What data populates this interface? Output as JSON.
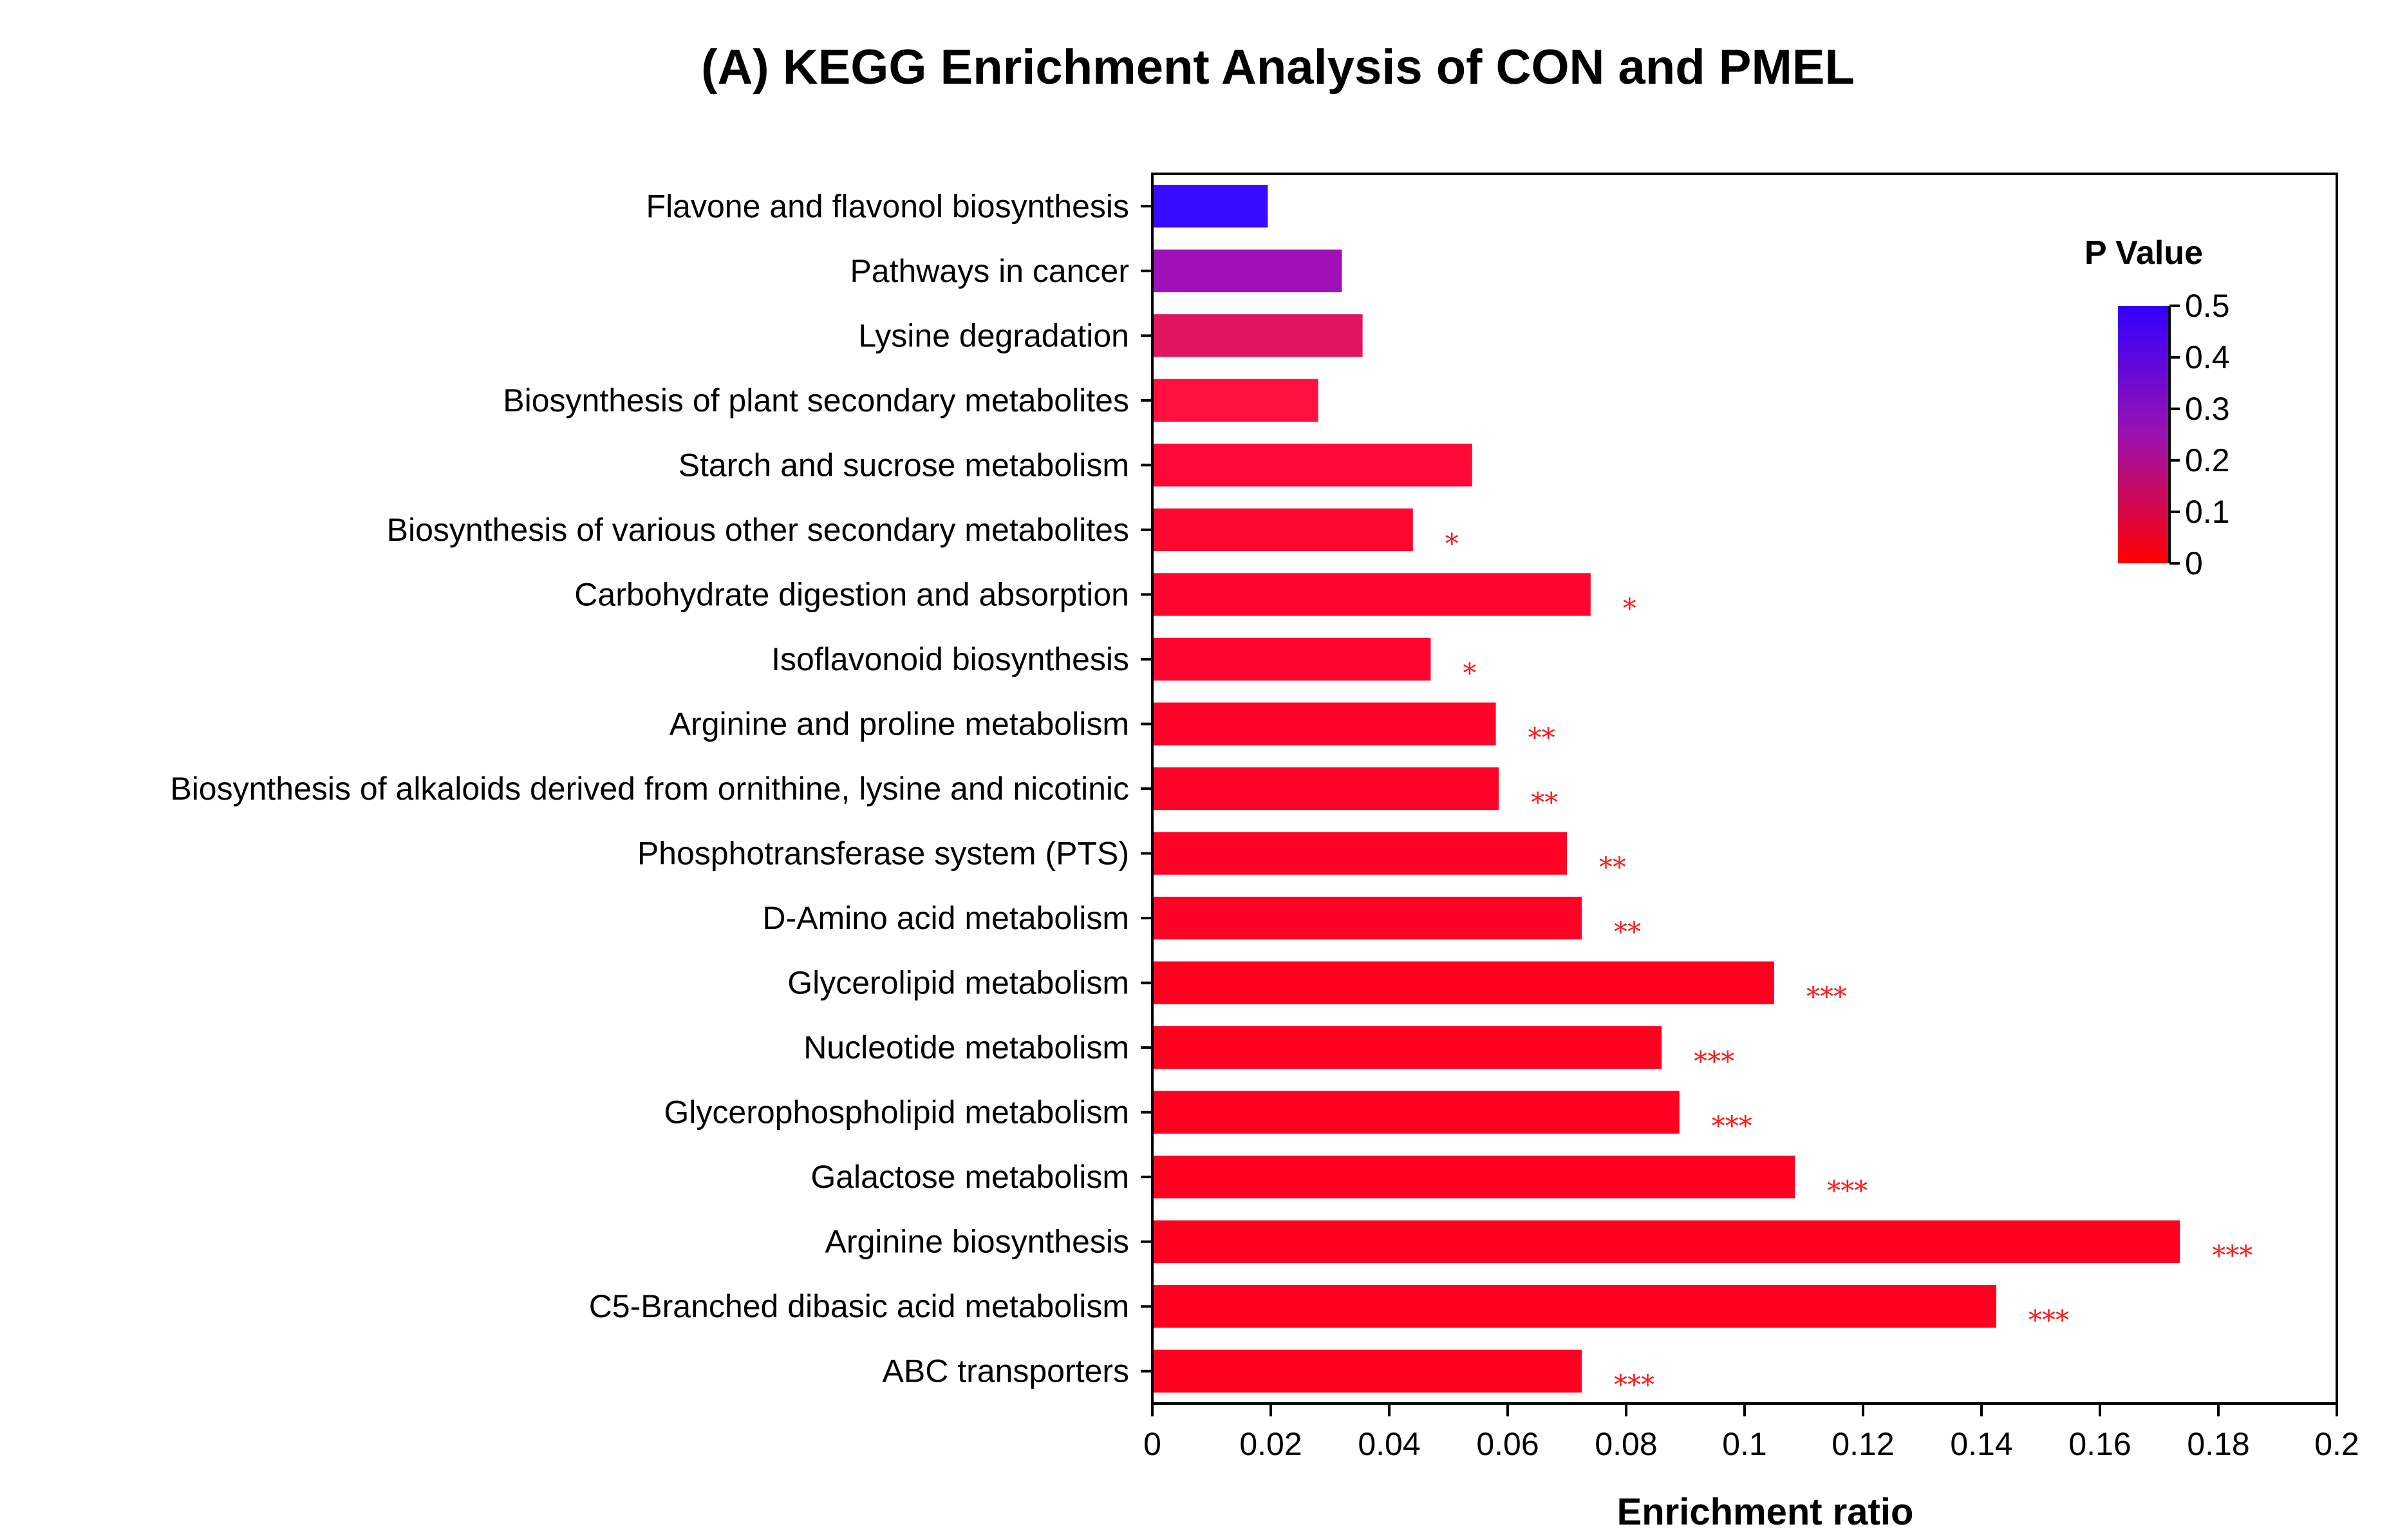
{
  "chart_data": {
    "type": "bar",
    "orientation": "horizontal",
    "title": "(A) KEGG Enrichment Analysis of CON and PMEL",
    "xlabel": "Enrichment ratio",
    "ylabel": "",
    "xlim": [
      0,
      0.2
    ],
    "x_ticks": [
      "0",
      "0.02",
      "0.04",
      "0.06",
      "0.08",
      "0.1",
      "0.12",
      "0.14",
      "0.16",
      "0.18",
      "0.2"
    ],
    "grid": false,
    "categories": [
      "Flavone and flavonol biosynthesis",
      "Pathways in cancer",
      "Lysine degradation",
      "Biosynthesis of plant secondary metabolites",
      "Starch and sucrose metabolism",
      "Biosynthesis of various other secondary metabolites",
      "Carbohydrate digestion and absorption",
      "Isoflavonoid biosynthesis",
      "Arginine and proline metabolism",
      "Biosynthesis of alkaloids derived from ornithine, lysine and nicotinic",
      "Phosphotransferase system (PTS)",
      "D-Amino acid metabolism",
      "Glycerolipid metabolism",
      "Nucleotide metabolism",
      "Glycerophospholipid metabolism",
      "Galactose metabolism",
      "Arginine biosynthesis",
      "C5-Branched dibasic acid metabolism",
      "ABC transporters"
    ],
    "values": [
      0.0195,
      0.032,
      0.0355,
      0.028,
      0.054,
      0.044,
      0.074,
      0.047,
      0.058,
      0.0585,
      0.07,
      0.0725,
      0.105,
      0.086,
      0.089,
      0.1085,
      0.1735,
      0.1425,
      0.0725
    ],
    "bar_colors": [
      "#3a0cff",
      "#a010b8",
      "#e01460",
      "#ff1040",
      "#ff0838",
      "#ff0830",
      "#ff0630",
      "#ff0630",
      "#ff0428",
      "#ff0428",
      "#ff0224",
      "#ff0224",
      "#ff0020",
      "#ff0020",
      "#ff0020",
      "#ff0020",
      "#ff0020",
      "#ff0020",
      "#ff0020"
    ],
    "significance": [
      "",
      "",
      "",
      "",
      "",
      "*",
      "*",
      "*",
      "**",
      "**",
      "**",
      "**",
      "***",
      "***",
      "***",
      "***",
      "***",
      "***",
      "***"
    ],
    "legend": {
      "title": "P Value",
      "ticks": [
        "0.5",
        "0.4",
        "0.3",
        "0.2",
        "0.1",
        "0"
      ],
      "color_high": "#3300ff",
      "color_mid": "#9a12b0",
      "color_low": "#ff0000",
      "position": "top-right"
    }
  }
}
